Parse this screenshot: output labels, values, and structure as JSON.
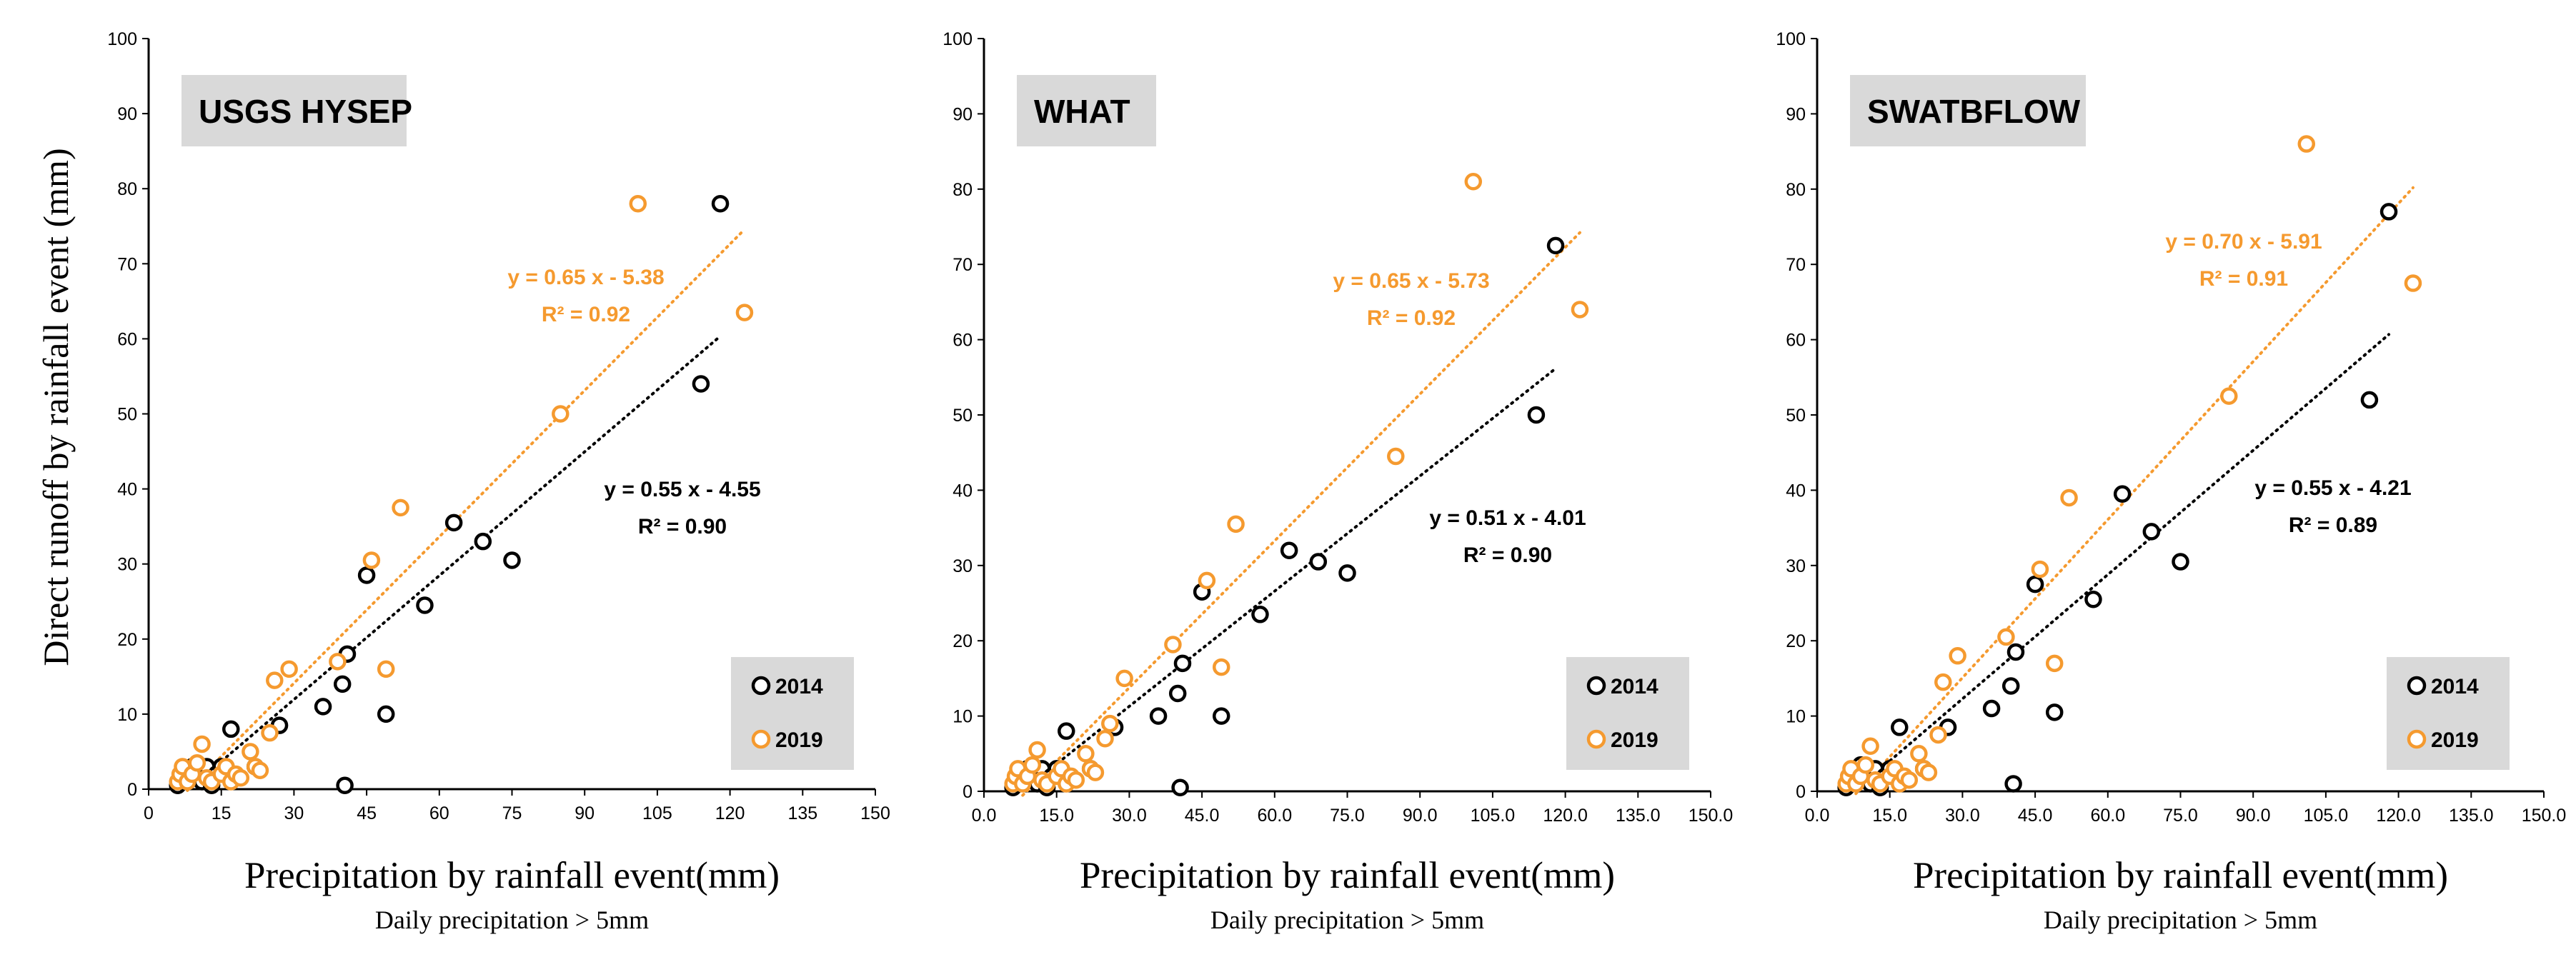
{
  "colors": {
    "2014": "#000000",
    "2019": "#f59a2f",
    "box": "#d9d9d9"
  },
  "ylabel": "Direct runoff by rainfall event (mm)",
  "chart_data": [
    {
      "type": "scatter",
      "title": "USGS HYSEP",
      "xlabel": "Precipitation by rainfall event(mm)",
      "subtitle": "Daily precipitation > 5mm",
      "xlim": [
        0,
        150
      ],
      "ylim": [
        0,
        100
      ],
      "xticks": [
        0,
        15,
        30,
        45,
        60,
        75,
        90,
        105,
        120,
        135,
        150
      ],
      "xtick_labels": [
        "0",
        "15",
        "30",
        "45",
        "60",
        "75",
        "90",
        "105",
        "120",
        "135",
        "150"
      ],
      "yticks": [
        0,
        10,
        20,
        30,
        40,
        50,
        60,
        70,
        80,
        90,
        100
      ],
      "legend": {
        "position": "bottom-right",
        "entries": [
          "2014",
          "2019"
        ]
      },
      "series": [
        {
          "name": "2014",
          "trendline": {
            "equation": "y = 0.55 x - 4.55",
            "r2": "R² = 0.90",
            "x": [
              8,
              118
            ]
          },
          "points": [
            [
              6,
              0.5
            ],
            [
              7,
              1
            ],
            [
              7.5,
              2
            ],
            [
              8,
              1.5
            ],
            [
              9,
              3
            ],
            [
              10,
              2
            ],
            [
              11,
              1
            ],
            [
              12,
              3
            ],
            [
              13,
              0.5
            ],
            [
              14,
              2
            ],
            [
              15,
              3
            ],
            [
              16,
              2.5
            ],
            [
              17,
              8
            ],
            [
              22,
              3
            ],
            [
              27,
              8.5
            ],
            [
              36,
              11
            ],
            [
              40,
              14
            ],
            [
              40.5,
              0.5
            ],
            [
              41,
              18
            ],
            [
              45,
              28.5
            ],
            [
              49,
              10
            ],
            [
              57,
              24.5
            ],
            [
              63,
              35.5
            ],
            [
              69,
              33
            ],
            [
              75,
              30.5
            ],
            [
              114,
              54
            ],
            [
              118,
              78
            ]
          ]
        },
        {
          "name": "2019",
          "trendline": {
            "equation": "y = 0.65 x - 5.38",
            "r2": "R² = 0.92",
            "x": [
              8,
              123
            ]
          },
          "points": [
            [
              6,
              1
            ],
            [
              6.5,
              2
            ],
            [
              7,
              3
            ],
            [
              8,
              1
            ],
            [
              9,
              2
            ],
            [
              10,
              3.5
            ],
            [
              11,
              6
            ],
            [
              12,
              1.5
            ],
            [
              13,
              1
            ],
            [
              15,
              2
            ],
            [
              16,
              3
            ],
            [
              17,
              1
            ],
            [
              18,
              2
            ],
            [
              19,
              1.5
            ],
            [
              21,
              5
            ],
            [
              22,
              3
            ],
            [
              23,
              2.5
            ],
            [
              25,
              7.5
            ],
            [
              26,
              14.5
            ],
            [
              29,
              16
            ],
            [
              39,
              17
            ],
            [
              46,
              30.5
            ],
            [
              49,
              16
            ],
            [
              52,
              37.5
            ],
            [
              85,
              50
            ],
            [
              101,
              78
            ],
            [
              123,
              63.5
            ]
          ]
        }
      ]
    },
    {
      "type": "scatter",
      "title": "WHAT",
      "xlabel": "Precipitation by rainfall event(mm)",
      "subtitle": "Daily precipitation > 5mm",
      "xlim": [
        0,
        150
      ],
      "ylim": [
        0,
        100
      ],
      "xticks": [
        0,
        15,
        30,
        45,
        60,
        75,
        90,
        105,
        120,
        135,
        150
      ],
      "xtick_labels": [
        "0.0",
        "15.0",
        "30.0",
        "45.0",
        "60.0",
        "75.0",
        "90.0",
        "105.0",
        "120.0",
        "135.0",
        "150.0"
      ],
      "yticks": [
        0,
        10,
        20,
        30,
        40,
        50,
        60,
        70,
        80,
        90,
        100
      ],
      "legend": {
        "position": "bottom-right",
        "entries": [
          "2014",
          "2019"
        ]
      },
      "series": [
        {
          "name": "2014",
          "trendline": {
            "equation": "y = 0.51 x - 4.01",
            "r2": "R² = 0.90",
            "x": [
              8,
              118
            ]
          },
          "points": [
            [
              6,
              0.5
            ],
            [
              7,
              1
            ],
            [
              7.5,
              2
            ],
            [
              8,
              1.5
            ],
            [
              9,
              3
            ],
            [
              10,
              2
            ],
            [
              11,
              1
            ],
            [
              12,
              3
            ],
            [
              13,
              0.5
            ],
            [
              14,
              2
            ],
            [
              15,
              3
            ],
            [
              16,
              2.5
            ],
            [
              17,
              8
            ],
            [
              22,
              3
            ],
            [
              27,
              8.5
            ],
            [
              36,
              10
            ],
            [
              40,
              13
            ],
            [
              40.5,
              0.5
            ],
            [
              41,
              17
            ],
            [
              45,
              26.5
            ],
            [
              49,
              10
            ],
            [
              57,
              23.5
            ],
            [
              63,
              32
            ],
            [
              69,
              30.5
            ],
            [
              75,
              29
            ],
            [
              114,
              50
            ],
            [
              118,
              72.5
            ]
          ]
        },
        {
          "name": "2019",
          "trendline": {
            "equation": "y = 0.65 x - 5.73",
            "r2": "R² = 0.92",
            "x": [
              8,
              123
            ]
          },
          "points": [
            [
              6,
              1
            ],
            [
              6.5,
              2
            ],
            [
              7,
              3
            ],
            [
              8,
              1
            ],
            [
              9,
              2
            ],
            [
              10,
              3.5
            ],
            [
              11,
              5.5
            ],
            [
              12,
              1.5
            ],
            [
              13,
              1
            ],
            [
              15,
              2
            ],
            [
              16,
              3
            ],
            [
              17,
              1
            ],
            [
              18,
              2
            ],
            [
              19,
              1.5
            ],
            [
              21,
              5
            ],
            [
              22,
              3
            ],
            [
              23,
              2.5
            ],
            [
              25,
              7
            ],
            [
              26,
              9
            ],
            [
              29,
              15
            ],
            [
              39,
              19.5
            ],
            [
              46,
              28
            ],
            [
              49,
              16.5
            ],
            [
              52,
              35.5
            ],
            [
              85,
              44.5
            ],
            [
              101,
              81
            ],
            [
              123,
              64
            ]
          ]
        }
      ]
    },
    {
      "type": "scatter",
      "title": "SWATBFLOW",
      "xlabel": "Precipitation by rainfall event(mm)",
      "subtitle": "Daily precipitation > 5mm",
      "xlim": [
        0,
        150
      ],
      "ylim": [
        0,
        100
      ],
      "xticks": [
        0,
        15,
        30,
        45,
        60,
        75,
        90,
        105,
        120,
        135,
        150
      ],
      "xtick_labels": [
        "0.0",
        "15.0",
        "30.0",
        "45.0",
        "60.0",
        "75.0",
        "90.0",
        "105.0",
        "120.0",
        "135.0",
        "150.0"
      ],
      "yticks": [
        0,
        10,
        20,
        30,
        40,
        50,
        60,
        70,
        80,
        90,
        100
      ],
      "legend": {
        "position": "bottom-right",
        "entries": [
          "2014",
          "2019"
        ]
      },
      "series": [
        {
          "name": "2014",
          "trendline": {
            "equation": "y = 0.55 x - 4.21",
            "r2": "R² = 0.89",
            "x": [
              8,
              118
            ]
          },
          "points": [
            [
              6,
              0.5
            ],
            [
              7,
              1
            ],
            [
              7.5,
              2
            ],
            [
              8,
              1.5
            ],
            [
              9,
              3.5
            ],
            [
              10,
              2
            ],
            [
              11,
              1
            ],
            [
              12,
              3
            ],
            [
              13,
              0.5
            ],
            [
              14,
              2
            ],
            [
              15,
              3
            ],
            [
              16,
              2.5
            ],
            [
              17,
              8.5
            ],
            [
              22,
              3
            ],
            [
              27,
              8.5
            ],
            [
              36,
              11
            ],
            [
              40,
              14
            ],
            [
              40.5,
              1
            ],
            [
              41,
              18.5
            ],
            [
              45,
              27.5
            ],
            [
              49,
              10.5
            ],
            [
              57,
              25.5
            ],
            [
              63,
              39.5
            ],
            [
              69,
              34.5
            ],
            [
              75,
              30.5
            ],
            [
              114,
              52
            ],
            [
              118,
              77
            ]
          ]
        },
        {
          "name": "2019",
          "trendline": {
            "equation": "y = 0.70 x - 5.91",
            "r2": "R² = 0.91",
            "x": [
              8,
              123
            ]
          },
          "points": [
            [
              6,
              1
            ],
            [
              6.5,
              2
            ],
            [
              7,
              3
            ],
            [
              8,
              1
            ],
            [
              9,
              2
            ],
            [
              10,
              3.5
            ],
            [
              11,
              6
            ],
            [
              12,
              1.5
            ],
            [
              13,
              1
            ],
            [
              15,
              2
            ],
            [
              16,
              3
            ],
            [
              17,
              1
            ],
            [
              18,
              2
            ],
            [
              19,
              1.5
            ],
            [
              21,
              5
            ],
            [
              22,
              3
            ],
            [
              23,
              2.5
            ],
            [
              25,
              7.5
            ],
            [
              26,
              14.5
            ],
            [
              29,
              18
            ],
            [
              39,
              20.5
            ],
            [
              46,
              29.5
            ],
            [
              49,
              17
            ],
            [
              52,
              39
            ],
            [
              85,
              52.5
            ],
            [
              101,
              86
            ],
            [
              123,
              67.5
            ]
          ]
        }
      ]
    }
  ]
}
